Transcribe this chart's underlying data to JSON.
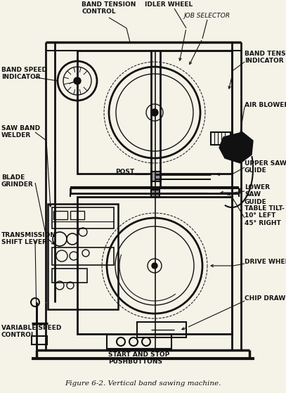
{
  "title": "Figure 6-2. Vertical band sawing machine.",
  "bg_color": "#f5f2e8",
  "line_color": "#111111",
  "figsize": [
    4.07,
    5.59
  ],
  "dpi": 100,
  "labels": {
    "band_tension_control": "BAND TENSION\nCONTROL",
    "idler_wheel": "IDLER WHEEL",
    "job_selector": "JOB SELECTOR",
    "band_speed_indicator": "BAND SPEED\nINDICATOR",
    "band_tension_indicator": "BAND TENSION\nINDICATOR",
    "air_blower": "AIR BLOWER",
    "saw_band_welder": "SAW BAND\nWELDER",
    "post": "POST",
    "upper_saw_guide": "UPPER SAW\nGUIDE",
    "blade_grinder": "BLADE\nGRINDER",
    "lower_saw_guide": "LOWER\nSAW\nGUIDE",
    "transmission_shift_lever": "TRANSMISSION\nSHIFT LEVER",
    "table_tilt": "TABLE TILT-\n10° LEFT\n45° RIGHT",
    "drive_wheel": "DRIVE WHEEL",
    "chip_drawer": "CHIP DRAWER",
    "variable_speed_control": "VARIABLE SPEED\nCONTROL",
    "start_stop": "START AND STOP\nPUSHBUTTONS"
  }
}
